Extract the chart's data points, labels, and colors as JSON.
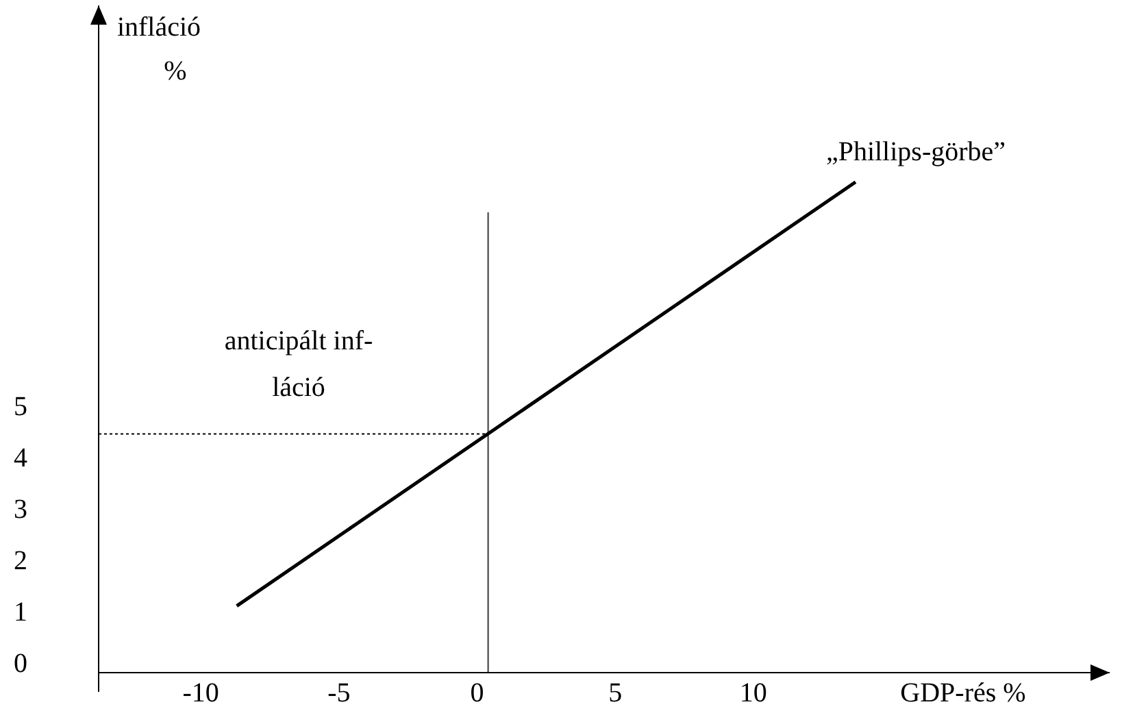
{
  "chart_data": {
    "type": "line",
    "ylabel": "infláció\n%",
    "xlabel": "GDP-rés %",
    "xlim": [
      -13.7,
      22.9
    ],
    "ylim": [
      -0.2,
      12.8
    ],
    "xticks": [
      -10,
      -5,
      0,
      5,
      10
    ],
    "yticks": [
      0,
      1,
      2,
      3,
      4,
      5
    ],
    "series": [
      {
        "name": "„Phillips-görbe”",
        "color": "#000000",
        "x": [
          -8.7,
          13.7
        ],
        "values": [
          1.1,
          9.36
        ]
      }
    ],
    "ref_lines": [
      {
        "axis": "x",
        "value": 0.4,
        "color": "#555555",
        "line_style": "solid"
      },
      {
        "axis": "y",
        "value": 4.45,
        "label": "anticipált inf-\nláció",
        "color": "#000000",
        "line_style": "dotted"
      }
    ],
    "grid": false,
    "marker": "none",
    "line_style": "solid"
  }
}
